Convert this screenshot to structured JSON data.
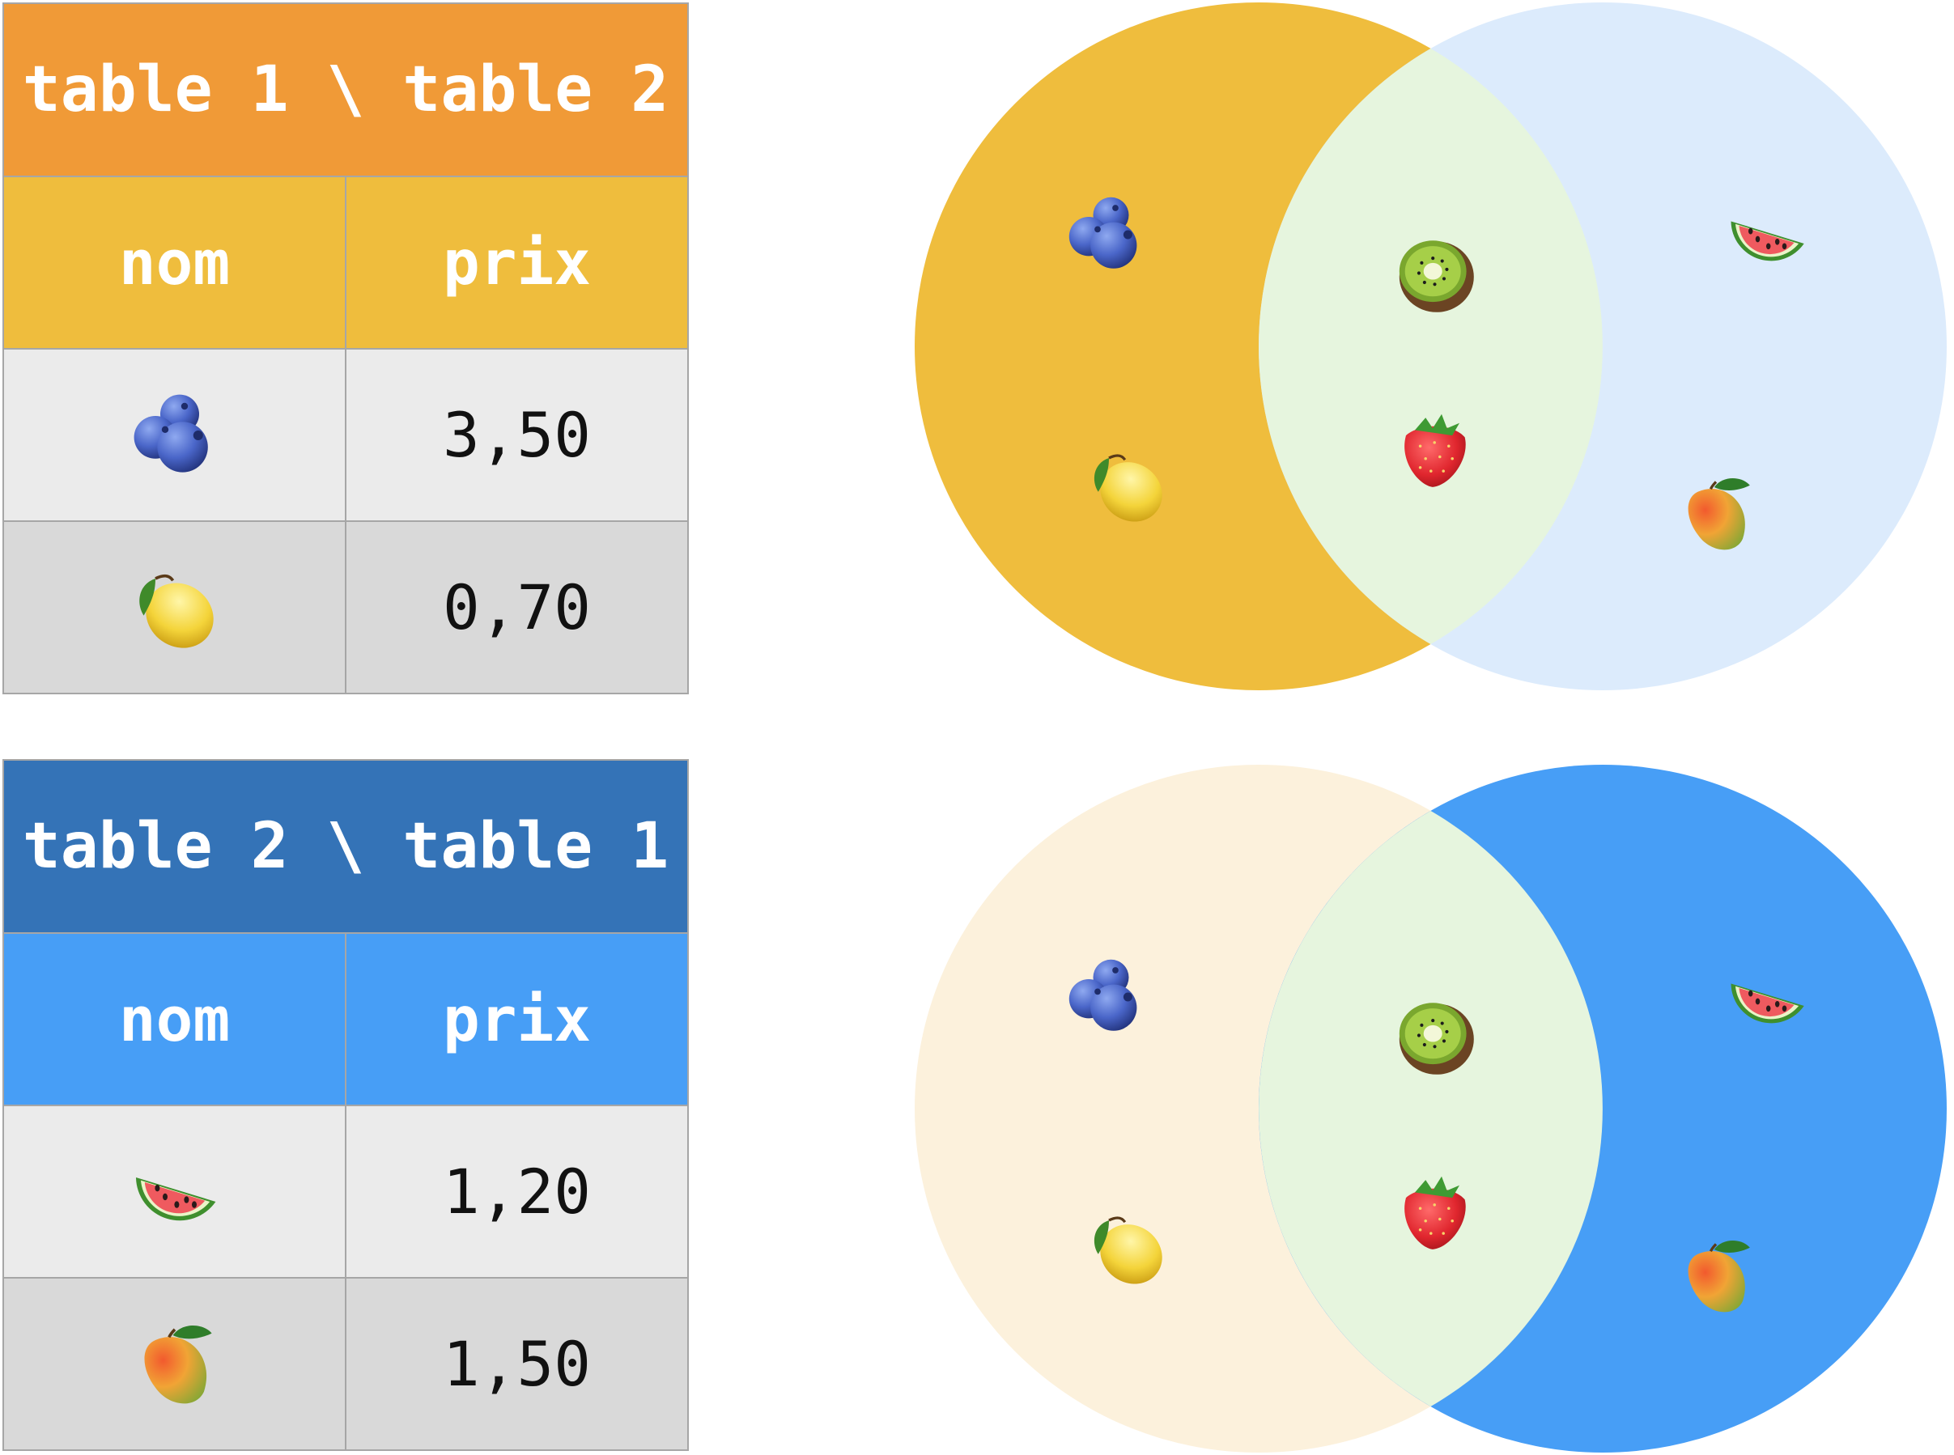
{
  "tables": [
    {
      "title": "table 1 \\ table 2",
      "title_color": "#F09A37",
      "header_color": "#EFBD3D",
      "columns": [
        "nom",
        "prix"
      ],
      "rows": [
        {
          "fruit_icon": "blueberries-icon",
          "prix": "3,50"
        },
        {
          "fruit_icon": "lemon-icon",
          "prix": "0,70"
        }
      ]
    },
    {
      "title": "table 2 \\ table 1",
      "title_color": "#3473B7",
      "header_color": "#479EF6",
      "columns": [
        "nom",
        "prix"
      ],
      "rows": [
        {
          "fruit_icon": "watermelon-icon",
          "prix": "1,20"
        },
        {
          "fruit_icon": "mango-icon",
          "prix": "1,50"
        }
      ]
    }
  ],
  "venn_diagrams": [
    {
      "highlight": "left-only",
      "left_color": "#EFBD3D",
      "right_color": "#DCEBFC",
      "overlap_color": "#E6F5DE",
      "left_only": [
        "blueberries-icon",
        "lemon-icon"
      ],
      "overlap": [
        "kiwi-icon",
        "strawberry-icon"
      ],
      "right_only": [
        "watermelon-icon",
        "mango-icon"
      ]
    },
    {
      "highlight": "right-only",
      "left_color": "#FCF1DC",
      "right_color": "#479EF6",
      "overlap_color": "#E6F5DE",
      "left_only": [
        "blueberries-icon",
        "lemon-icon"
      ],
      "overlap": [
        "kiwi-icon",
        "strawberry-icon"
      ],
      "right_only": [
        "watermelon-icon",
        "mango-icon"
      ]
    }
  ]
}
